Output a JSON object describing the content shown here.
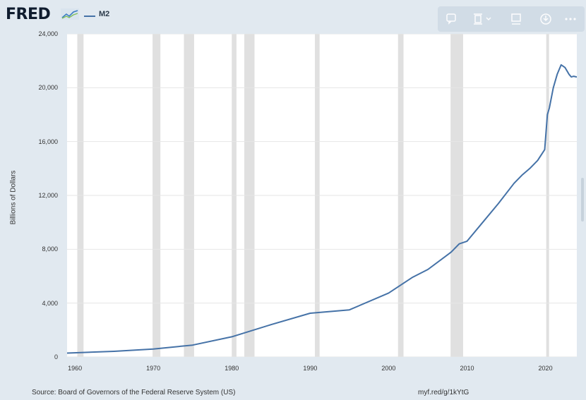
{
  "header": {
    "logo_text": "FRED",
    "logo_icon": "chart-line-icon",
    "series_legend": "M2"
  },
  "toolbar": {
    "items": [
      {
        "icon": "comment-icon"
      },
      {
        "icon": "embed-icon"
      },
      {
        "icon": "notes-icon"
      },
      {
        "icon": "download-icon"
      },
      {
        "icon": "more-icon"
      }
    ]
  },
  "chart_data": {
    "type": "line",
    "title": "",
    "xlabel": "",
    "ylabel": "Billions of Dollars",
    "xlim": [
      1959,
      2024
    ],
    "ylim": [
      0,
      24000
    ],
    "x_ticks": [
      "1960",
      "1970",
      "1980",
      "1990",
      "2000",
      "2010",
      "2020"
    ],
    "y_ticks": [
      "0",
      "4,000",
      "8,000",
      "12,000",
      "16,000",
      "20,000",
      "24,000"
    ],
    "grid": true,
    "legend_position": "top-left",
    "series_color": "#4572a7",
    "recession_color": "#e0e0e0",
    "recessions": [
      [
        1960.3,
        1961.1
      ],
      [
        1969.9,
        1970.9
      ],
      [
        1973.9,
        1975.2
      ],
      [
        1980.0,
        1980.6
      ],
      [
        1981.6,
        1982.9
      ],
      [
        1990.6,
        1991.2
      ],
      [
        2001.2,
        2001.9
      ],
      [
        2007.9,
        2009.5
      ],
      [
        2020.1,
        2020.4
      ]
    ],
    "series": [
      {
        "name": "M2",
        "x": [
          1959.0,
          1965.0,
          1970.0,
          1975.0,
          1980.0,
          1985.0,
          1990.0,
          1995.0,
          2000.0,
          2003.0,
          2005.0,
          2008.0,
          2009.0,
          2010.0,
          2012.0,
          2014.0,
          2016.0,
          2017.0,
          2018.0,
          2019.0,
          2019.9,
          2020.25,
          2020.5,
          2021.0,
          2021.5,
          2022.0,
          2022.5,
          2023.0,
          2023.3,
          2023.6,
          2024.0
        ],
        "y": [
          290,
          420,
          590,
          880,
          1500,
          2400,
          3250,
          3500,
          4750,
          5900,
          6500,
          7800,
          8400,
          8600,
          10000,
          11400,
          12900,
          13500,
          14000,
          14600,
          15400,
          18000,
          18500,
          20000,
          21000,
          21700,
          21500,
          21000,
          20800,
          20850,
          20800
        ]
      }
    ]
  },
  "footer": {
    "source": "Source: Board of Governors of the Federal Reserve System (US)",
    "link": "myf.red/g/1kYtG"
  }
}
